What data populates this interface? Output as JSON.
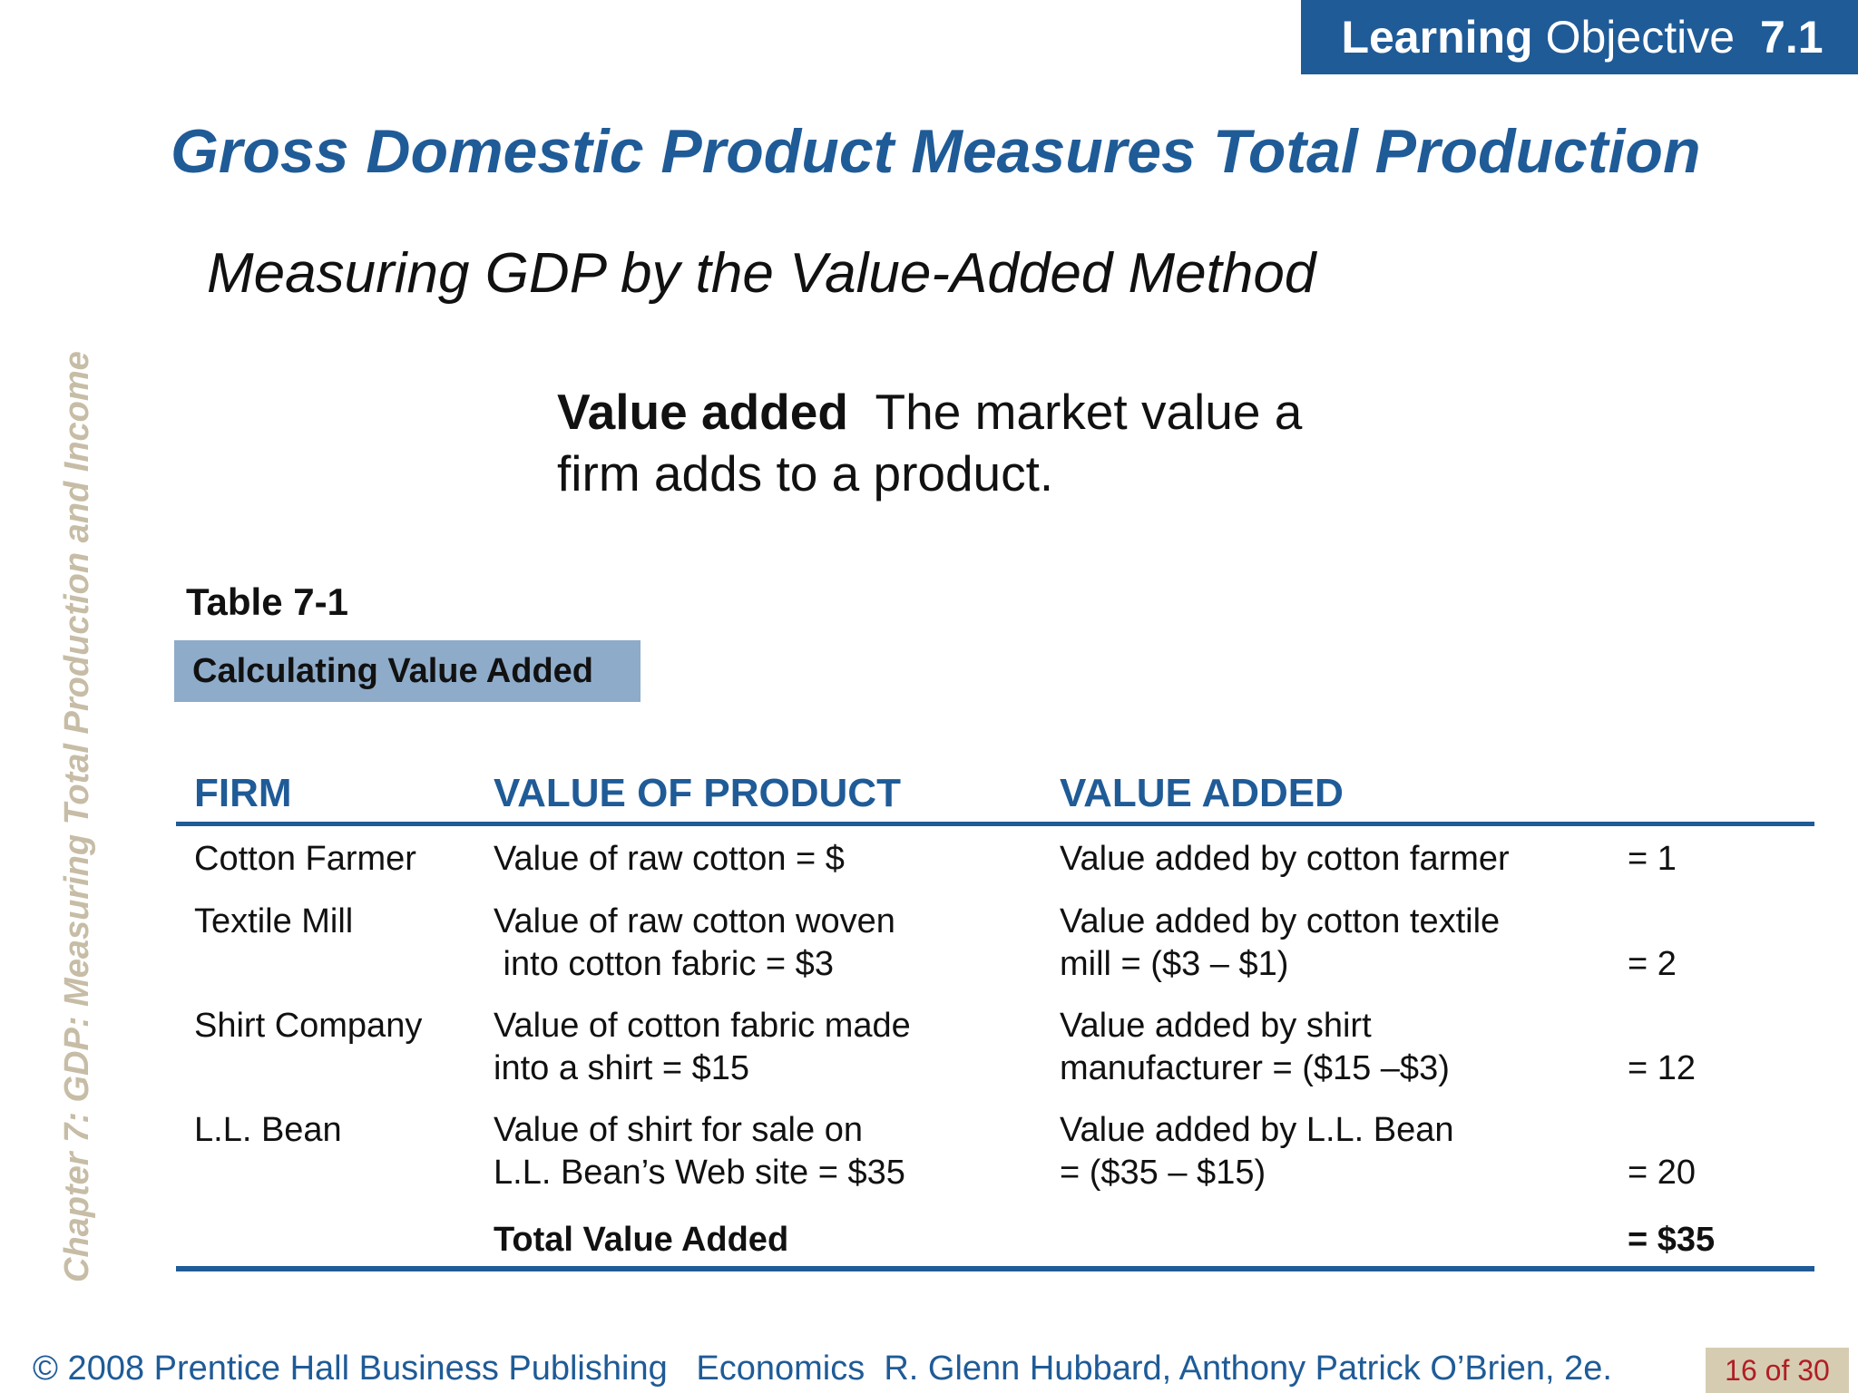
{
  "header": {
    "lo_strong": "Learning",
    "lo_rest": "Objective",
    "lo_number": "7.1"
  },
  "sidebar": {
    "chapter": "Chapter 7:  GDP:  Measuring Total Production and Income"
  },
  "title": "Gross Domestic Product Measures Total Production",
  "subtitle": "Measuring GDP by the Value-Added Method",
  "definition": {
    "term": "Value added",
    "text": "The market value a firm adds to a product."
  },
  "table": {
    "label": "Table 7-1",
    "caption": "Calculating Value Added",
    "headers": [
      "FIRM",
      "VALUE OF PRODUCT",
      "VALUE ADDED"
    ],
    "rows": [
      {
        "firm": "Cotton Farmer",
        "product": "Value of raw cotton = $",
        "added": "Value added by cotton farmer",
        "amount": "= 1"
      },
      {
        "firm": "Textile Mill",
        "product": "Value of raw cotton woven\n into cotton fabric = $3",
        "added": "Value added by cotton textile\nmill = ($3 – $1)",
        "amount": "= 2"
      },
      {
        "firm": "Shirt Company",
        "product": "Value of cotton fabric made\ninto a shirt = $15",
        "added": "Value added by shirt\nmanufacturer = ($15 –$3)",
        "amount": "= 12"
      },
      {
        "firm": "L.L. Bean",
        "product": "Value of shirt for sale on\nL.L. Bean’s Web site = $35",
        "added": "Value added by L.L. Bean\n= ($35 – $15)",
        "amount": "= 20"
      }
    ],
    "total_label": "Total Value Added",
    "total_amount": "= $35"
  },
  "footer": {
    "copyright": "© 2008 Prentice Hall Business Publishing   Economics  R. Glenn Hubbard, Anthony Patrick O’Brien, 2e.",
    "page": "16 of 30"
  }
}
